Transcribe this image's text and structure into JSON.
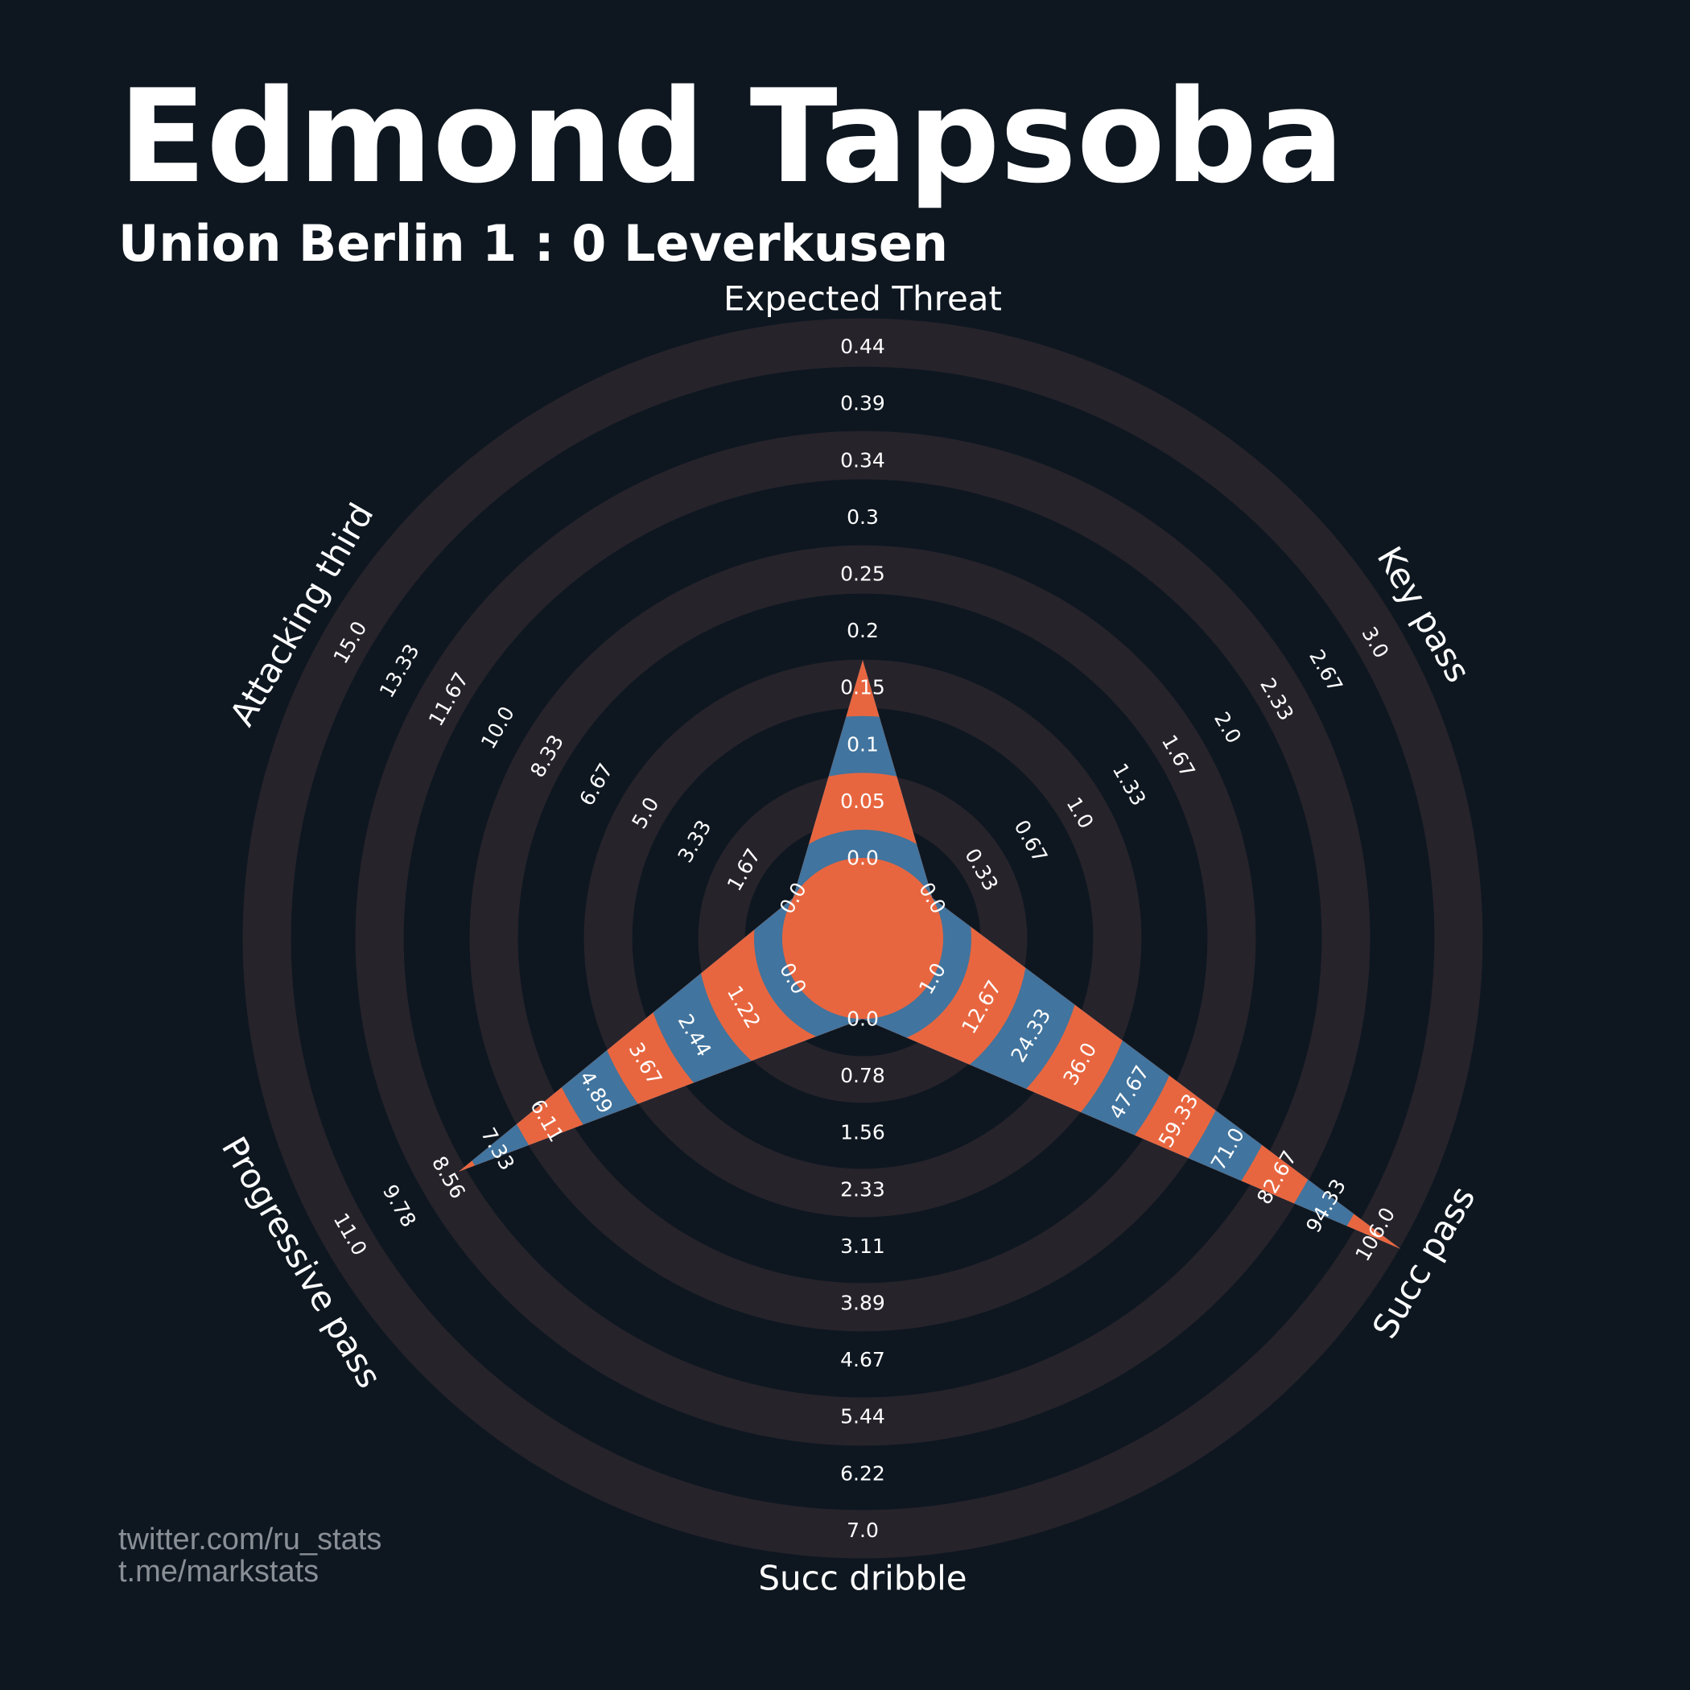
{
  "header": {
    "title": "Edmond Tapsoba",
    "subtitle": "Union Berlin 1 : 0 Leverkusen"
  },
  "credits": {
    "line1": "twitter.com/ru_stats",
    "line2": "t.me/markstats"
  },
  "colors": {
    "background": "#0e1720",
    "ring": "#27232b",
    "series_a": "#e8663f",
    "series_b": "#41749e",
    "text": "#ffffff",
    "credit_text": "#8a8f96"
  },
  "chart_data": {
    "type": "radar",
    "params": [
      "Expected Threat",
      "Key pass",
      "Succ pass",
      "Succ dribble",
      "Progressive pass",
      "Attacking third"
    ],
    "ranges": [
      [
        0.0,
        0.44
      ],
      [
        0.0,
        3.0
      ],
      [
        1.0,
        106.0
      ],
      [
        0.0,
        7.0
      ],
      [
        0.0,
        11.0
      ],
      [
        0.0,
        15.0
      ]
    ],
    "tick_labels": [
      [
        "0.0",
        "0.05",
        "0.1",
        "0.15",
        "0.2",
        "0.25",
        "0.3",
        "0.34",
        "0.39",
        "0.44"
      ],
      [
        "0.0",
        "0.33",
        "0.67",
        "1.0",
        "1.33",
        "1.67",
        "2.0",
        "2.33",
        "2.67",
        "3.0"
      ],
      [
        "1.0",
        "12.67",
        "24.33",
        "36.0",
        "47.67",
        "59.33",
        "71.0",
        "82.67",
        "94.33",
        "106.0"
      ],
      [
        "0.0",
        "0.78",
        "1.56",
        "2.33",
        "3.11",
        "3.89",
        "4.67",
        "5.44",
        "6.22",
        "7.0"
      ],
      [
        "0.0",
        "1.22",
        "2.44",
        "3.67",
        "4.89",
        "6.11",
        "7.33",
        "8.56",
        "9.78",
        "11.0"
      ],
      [
        "0.0",
        "1.67",
        "3.33",
        "5.0",
        "6.67",
        "8.33",
        "10.0",
        "11.67",
        "13.33",
        "15.0"
      ]
    ],
    "values": [
      0.17,
      0.0,
      112.0,
      0.0,
      8.3,
      0.0
    ],
    "grid": true
  }
}
